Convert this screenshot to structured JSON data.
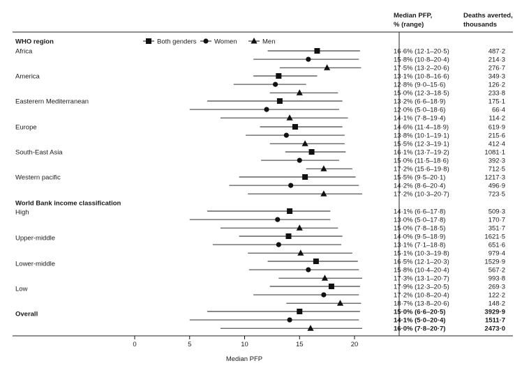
{
  "chart_data": {
    "type": "forest",
    "xlabel": "Median PFP",
    "xlim": [
      0,
      24
    ],
    "xticks": [
      0,
      5,
      10,
      15,
      20
    ],
    "col_headers": {
      "pfp": [
        "Median PFP,",
        "% (range)"
      ],
      "deaths": [
        "Deaths averted,",
        "thousands"
      ]
    },
    "legend": {
      "placement": "top",
      "items": [
        {
          "name": "Both genders",
          "marker": "square"
        },
        {
          "name": "Women",
          "marker": "circle"
        },
        {
          "name": "Men",
          "marker": "triangle"
        }
      ]
    },
    "sections": [
      {
        "title": "WHO region",
        "groups": [
          {
            "label": "Africa",
            "rows": [
              {
                "marker": "square",
                "median": 16.6,
                "low": 12.1,
                "high": 20.5,
                "pfp_text": "16·6% (12·1–20·5)",
                "deaths_text": "487·2"
              },
              {
                "marker": "circle",
                "median": 15.8,
                "low": 10.8,
                "high": 20.4,
                "pfp_text": "15·8% (10·8–20·4)",
                "deaths_text": "214·3"
              },
              {
                "marker": "triangle",
                "median": 17.5,
                "low": 13.2,
                "high": 20.6,
                "pfp_text": "17·5% (13·2–20·6)",
                "deaths_text": "276·7"
              }
            ]
          },
          {
            "label": "America",
            "rows": [
              {
                "marker": "square",
                "median": 13.1,
                "low": 10.8,
                "high": 16.6,
                "pfp_text": "13·1% (10·8–16·6)",
                "deaths_text": "349·3"
              },
              {
                "marker": "circle",
                "median": 12.8,
                "low": 9.0,
                "high": 15.6,
                "pfp_text": "12·8% (9·0–15·6)",
                "deaths_text": "126·2"
              },
              {
                "marker": "triangle",
                "median": 15.0,
                "low": 12.3,
                "high": 18.5,
                "pfp_text": "15·0% (12·3–18·5)",
                "deaths_text": "233·8"
              }
            ]
          },
          {
            "label": "Easterern Mediterranean",
            "rows": [
              {
                "marker": "square",
                "median": 13.2,
                "low": 6.6,
                "high": 18.9,
                "pfp_text": "13·2% (6·6–18·9)",
                "deaths_text": "175·1"
              },
              {
                "marker": "circle",
                "median": 12.0,
                "low": 5.0,
                "high": 18.6,
                "pfp_text": "12·0% (5·0–18·6)",
                "deaths_text": "66·4"
              },
              {
                "marker": "triangle",
                "median": 14.1,
                "low": 7.8,
                "high": 19.4,
                "pfp_text": "14·1% (7·8–19·4)",
                "deaths_text": "114·2"
              }
            ]
          },
          {
            "label": "Europe",
            "rows": [
              {
                "marker": "square",
                "median": 14.6,
                "low": 11.4,
                "high": 18.9,
                "pfp_text": "14·6% (11·4–18·9)",
                "deaths_text": "619·9"
              },
              {
                "marker": "circle",
                "median": 13.8,
                "low": 10.1,
                "high": 19.1,
                "pfp_text": "13·8% (10·1–19·1)",
                "deaths_text": "215·6"
              },
              {
                "marker": "triangle",
                "median": 15.5,
                "low": 12.3,
                "high": 19.1,
                "pfp_text": "15·5% (12·3–19·1)",
                "deaths_text": "412·4"
              }
            ]
          },
          {
            "label": "South-East Asia",
            "rows": [
              {
                "marker": "square",
                "median": 16.1,
                "low": 13.7,
                "high": 19.2,
                "pfp_text": "16·1% (13·7–19·2)",
                "deaths_text": "1081·1"
              },
              {
                "marker": "circle",
                "median": 15.0,
                "low": 11.5,
                "high": 18.6,
                "pfp_text": "15·0% (11·5–18·6)",
                "deaths_text": "392·3"
              },
              {
                "marker": "triangle",
                "median": 17.2,
                "low": 15.6,
                "high": 19.8,
                "pfp_text": "17·2% (15·6–19·8)",
                "deaths_text": "712·5"
              }
            ]
          },
          {
            "label": "Western pacific",
            "rows": [
              {
                "marker": "square",
                "median": 15.5,
                "low": 9.5,
                "high": 20.1,
                "pfp_text": "15·5% (9·5–20·1)",
                "deaths_text": "1217·3"
              },
              {
                "marker": "circle",
                "median": 14.2,
                "low": 8.6,
                "high": 20.4,
                "pfp_text": "14·2% (8·6–20·4)",
                "deaths_text": "496·9"
              },
              {
                "marker": "triangle",
                "median": 17.2,
                "low": 10.3,
                "high": 20.7,
                "pfp_text": "17·2% (10·3–20·7)",
                "deaths_text": "723·5"
              }
            ]
          }
        ]
      },
      {
        "title": "World Bank income classification",
        "groups": [
          {
            "label": "High",
            "rows": [
              {
                "marker": "square",
                "median": 14.1,
                "low": 6.6,
                "high": 17.8,
                "pfp_text": "14·1% (6·6–17·8)",
                "deaths_text": "509·3"
              },
              {
                "marker": "circle",
                "median": 13.0,
                "low": 5.0,
                "high": 17.8,
                "pfp_text": "13·0% (5·0–17·8)",
                "deaths_text": "170·7"
              },
              {
                "marker": "triangle",
                "median": 15.0,
                "low": 7.8,
                "high": 18.5,
                "pfp_text": "15·0% (7·8–18·5)",
                "deaths_text": "351·7"
              }
            ]
          },
          {
            "label": "Upper-middle",
            "rows": [
              {
                "marker": "square",
                "median": 14.0,
                "low": 9.5,
                "high": 18.9,
                "pfp_text": "14·0% (9·5–18·9)",
                "deaths_text": "1621·5"
              },
              {
                "marker": "circle",
                "median": 13.1,
                "low": 7.1,
                "high": 18.8,
                "pfp_text": "13·1% (7·1–18·8)",
                "deaths_text": "651·6"
              },
              {
                "marker": "triangle",
                "median": 15.1,
                "low": 10.3,
                "high": 19.8,
                "pfp_text": "15·1% (10·3–19·8)",
                "deaths_text": "979·4"
              }
            ]
          },
          {
            "label": "Lower-middle",
            "rows": [
              {
                "marker": "square",
                "median": 16.5,
                "low": 12.1,
                "high": 20.3,
                "pfp_text": "16·5% (12·1–20·3)",
                "deaths_text": "1529·9"
              },
              {
                "marker": "circle",
                "median": 15.8,
                "low": 10.4,
                "high": 20.4,
                "pfp_text": "15·8% (10·4–20·4)",
                "deaths_text": "567·2"
              },
              {
                "marker": "triangle",
                "median": 17.3,
                "low": 13.1,
                "high": 20.7,
                "pfp_text": "17·3% (13·1–20·7)",
                "deaths_text": "993·8"
              }
            ]
          },
          {
            "label": "Low",
            "rows": [
              {
                "marker": "square",
                "median": 17.9,
                "low": 12.3,
                "high": 20.5,
                "pfp_text": "17·9% (12·3–20·5)",
                "deaths_text": "269·3"
              },
              {
                "marker": "circle",
                "median": 17.2,
                "low": 10.8,
                "high": 20.4,
                "pfp_text": "17·2% (10·8–20·4)",
                "deaths_text": "122·2"
              },
              {
                "marker": "triangle",
                "median": 18.7,
                "low": 13.8,
                "high": 20.6,
                "pfp_text": "18·7% (13·8–20·6)",
                "deaths_text": "148·2"
              }
            ]
          },
          {
            "label": "Overall",
            "bold": true,
            "rows": [
              {
                "marker": "square",
                "median": 15.0,
                "low": 6.6,
                "high": 20.5,
                "pfp_text": "15·0% (6·6–20·5)",
                "deaths_text": "3929·9"
              },
              {
                "marker": "circle",
                "median": 14.1,
                "low": 5.0,
                "high": 20.4,
                "pfp_text": "14·1% (5·0–20·4)",
                "deaths_text": "1511·7"
              },
              {
                "marker": "triangle",
                "median": 16.0,
                "low": 7.8,
                "high": 20.7,
                "pfp_text": "16·0% (7·8–20·7)",
                "deaths_text": "2473·0"
              }
            ]
          }
        ]
      }
    ]
  }
}
